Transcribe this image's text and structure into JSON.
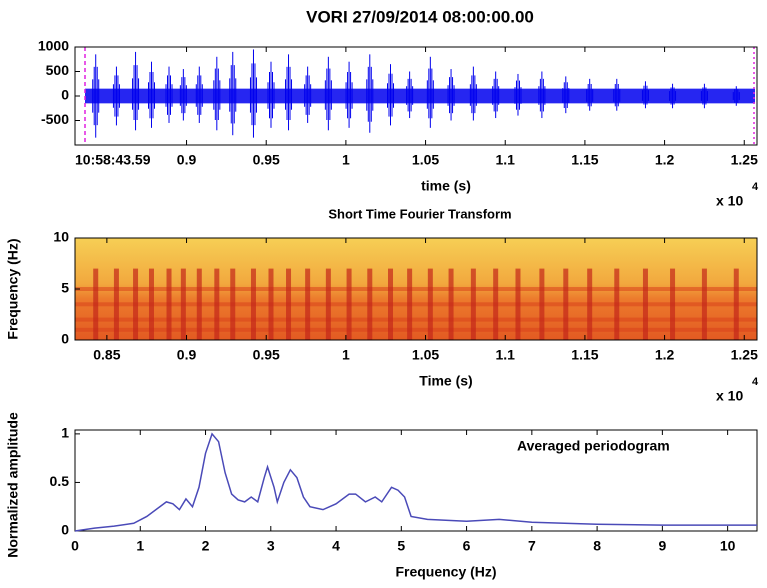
{
  "chart_data": [
    {
      "type": "waveform",
      "title": "VORI 27/09/2014  08:00:00.00",
      "annotation": "10:58:43.59",
      "x_label": "time (s)",
      "x_multiplier": "x 10",
      "x_exponent": "4",
      "color": "#0000ee",
      "xlim": [
        8300,
        12580
      ],
      "ylim": [
        -1000,
        1000
      ],
      "xticks": [
        {
          "value": 9000,
          "label": "0.9"
        },
        {
          "value": 9500,
          "label": "0.95"
        },
        {
          "value": 10000,
          "label": "1"
        },
        {
          "value": 10500,
          "label": "1.05"
        },
        {
          "value": 11000,
          "label": "1.1"
        },
        {
          "value": 11500,
          "label": "1.15"
        },
        {
          "value": 12000,
          "label": "1.2"
        },
        {
          "value": 12500,
          "label": "1.25"
        }
      ],
      "yticks": [
        1000,
        500,
        0,
        -500
      ],
      "noise_level": 150,
      "x": [
        8430,
        8560,
        8680,
        8780,
        8890,
        8980,
        9080,
        9190,
        9290,
        9420,
        9530,
        9640,
        9760,
        9890,
        10020,
        10150,
        10280,
        10400,
        10530,
        10660,
        10800,
        10940,
        11080,
        11230,
        11380,
        11530,
        11700,
        11880,
        12050,
        12250,
        12450
      ],
      "upper": [
        850,
        600,
        900,
        700,
        600,
        550,
        600,
        800,
        900,
        950,
        700,
        850,
        600,
        800,
        700,
        850,
        650,
        500,
        800,
        550,
        600,
        500,
        450,
        500,
        400,
        350,
        350,
        300,
        250,
        250,
        200
      ],
      "lower": [
        -850,
        -600,
        -700,
        -650,
        -550,
        -500,
        -550,
        -700,
        -800,
        -850,
        -650,
        -700,
        -550,
        -700,
        -650,
        -750,
        -600,
        -450,
        -650,
        -500,
        -500,
        -450,
        -400,
        -450,
        -350,
        -300,
        -300,
        -250,
        -250,
        -250,
        -200
      ]
    },
    {
      "type": "spectrogram",
      "title": "Short Time Fourier Transform",
      "x_label": "Time (s)",
      "y_label": "Frequency (Hz)",
      "x_multiplier": "x 10",
      "x_exponent": "4",
      "xlim": [
        8300,
        12580
      ],
      "ylim": [
        0,
        10
      ],
      "xticks": [
        {
          "value": 8500,
          "label": "0.85"
        },
        {
          "value": 9000,
          "label": "0.9"
        },
        {
          "value": 9500,
          "label": "0.95"
        },
        {
          "value": 10000,
          "label": "1"
        },
        {
          "value": 10500,
          "label": "1.05"
        },
        {
          "value": 11000,
          "label": "1.1"
        },
        {
          "value": 11500,
          "label": "1.15"
        },
        {
          "value": 12000,
          "label": "1.2"
        },
        {
          "value": 12500,
          "label": "1.25"
        }
      ],
      "yticks": [
        0,
        5,
        10
      ],
      "bands": [
        1,
        2,
        3.5,
        5
      ],
      "x": [
        8430,
        8560,
        8680,
        8780,
        8890,
        8980,
        9080,
        9190,
        9290,
        9420,
        9530,
        9640,
        9760,
        9890,
        10020,
        10150,
        10280,
        10400,
        10530,
        10660,
        10800,
        10940,
        11080,
        11230,
        11380,
        11530,
        11700,
        11880,
        12050,
        12250,
        12450
      ]
    },
    {
      "type": "line",
      "legend": "Averaged periodogram",
      "x_label": "Frequency (Hz)",
      "y_label": "Normalized amplitude",
      "color": "#4a4ab8",
      "xlim": [
        0,
        10.45
      ],
      "ylim": [
        0,
        1.04
      ],
      "xticks": [
        0,
        1,
        2,
        3,
        4,
        5,
        6,
        7,
        8,
        9,
        10
      ],
      "yticks": [
        0,
        0.5,
        1
      ],
      "x": [
        0,
        0.3,
        0.6,
        0.9,
        1.1,
        1.3,
        1.4,
        1.5,
        1.6,
        1.7,
        1.8,
        1.9,
        2.0,
        2.1,
        2.2,
        2.3,
        2.4,
        2.5,
        2.6,
        2.7,
        2.8,
        2.9,
        2.95,
        3.05,
        3.1,
        3.2,
        3.3,
        3.4,
        3.5,
        3.6,
        3.8,
        4.0,
        4.2,
        4.3,
        4.45,
        4.6,
        4.7,
        4.85,
        4.95,
        5.05,
        5.15,
        5.4,
        6,
        6.5,
        7,
        7.5,
        8,
        9,
        10,
        10.45
      ],
      "values": [
        0,
        0.03,
        0.05,
        0.08,
        0.15,
        0.25,
        0.3,
        0.28,
        0.22,
        0.33,
        0.25,
        0.45,
        0.8,
        1.0,
        0.92,
        0.6,
        0.38,
        0.32,
        0.3,
        0.35,
        0.3,
        0.55,
        0.66,
        0.45,
        0.3,
        0.5,
        0.63,
        0.55,
        0.35,
        0.25,
        0.22,
        0.28,
        0.38,
        0.38,
        0.3,
        0.35,
        0.3,
        0.45,
        0.42,
        0.35,
        0.15,
        0.12,
        0.1,
        0.12,
        0.09,
        0.08,
        0.07,
        0.06,
        0.06,
        0.06
      ]
    }
  ]
}
